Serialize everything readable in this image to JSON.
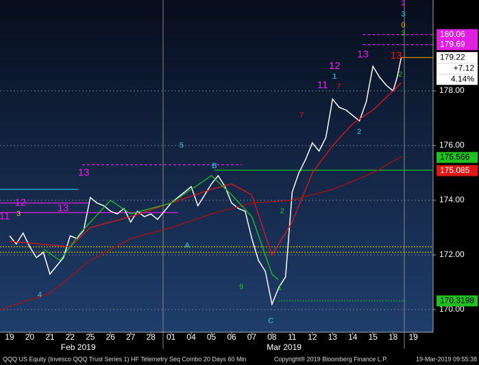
{
  "chart_data": {
    "type": "line",
    "title": "QQQ US Equity (Invesco QQQ Trust Series 1) HF Telemetry Seq Combo 20 Days 60 Min",
    "copyright": "Copyright® 2019 Bloomberg Finance L.P.",
    "timestamp": "19-Mar-2019 09:55:38",
    "xlim": [
      -0.475,
      20.98
    ],
    "ylim": [
      169.175,
      181.325
    ],
    "xticks": [
      {
        "value": 0,
        "label": "19"
      },
      {
        "value": 1,
        "label": "20"
      },
      {
        "value": 2,
        "label": "21"
      },
      {
        "value": 3,
        "label": "22"
      },
      {
        "value": 4,
        "label": "25"
      },
      {
        "value": 5,
        "label": "26"
      },
      {
        "value": 6,
        "label": "27"
      },
      {
        "value": 7,
        "label": "28"
      },
      {
        "value": 8,
        "label": "01"
      },
      {
        "value": 9,
        "label": "04"
      },
      {
        "value": 10,
        "label": "05"
      },
      {
        "value": 11,
        "label": "06"
      },
      {
        "value": 12,
        "label": "07"
      },
      {
        "value": 13,
        "label": "08"
      },
      {
        "value": 14,
        "label": "11"
      },
      {
        "value": 15,
        "label": "12"
      },
      {
        "value": 16,
        "label": "13"
      },
      {
        "value": 17,
        "label": "14"
      },
      {
        "value": 18,
        "label": "15"
      },
      {
        "value": 19,
        "label": "18"
      },
      {
        "value": 20,
        "label": "19"
      }
    ],
    "month_labels": [
      {
        "value": 3.4,
        "label": "Feb 2019"
      },
      {
        "value": 13.6,
        "label": "Mar 2019"
      }
    ],
    "yticks": [
      {
        "value": 170,
        "label": "170.00"
      },
      {
        "value": 172,
        "label": "172.00"
      },
      {
        "value": 174,
        "label": "174.00"
      },
      {
        "value": 176,
        "label": "176.00"
      },
      {
        "value": 178,
        "label": "178.00"
      }
    ],
    "grid": true,
    "series": [
      {
        "color": "#ffffff",
        "x": [
          0,
          0.33,
          0.67,
          1,
          1.33,
          1.67,
          2,
          2.33,
          2.67,
          3,
          3.33,
          3.67,
          4,
          4.33,
          4.67,
          5,
          5.33,
          5.67,
          6,
          6.33,
          6.67,
          7,
          7.33,
          7.67,
          8,
          8.33,
          8.67,
          9,
          9.33,
          9.67,
          10,
          10.33,
          10.67,
          11,
          11.33,
          11.67,
          12,
          12.33,
          12.67,
          13,
          13.33,
          13.67,
          14,
          14.33,
          14.67,
          15,
          15.33,
          15.67,
          16,
          16.33,
          16.67,
          17,
          17.33,
          17.67,
          18,
          18.33,
          18.67,
          19,
          19.2,
          19.4
        ],
        "values": [
          172.7,
          172.4,
          172.8,
          172.3,
          171.9,
          172.1,
          171.3,
          171.6,
          171.9,
          172.7,
          172.6,
          172.9,
          174.1,
          173.9,
          173.8,
          173.6,
          173.5,
          173.7,
          173.2,
          173.6,
          173.4,
          173.5,
          173.3,
          173.6,
          173.9,
          174.1,
          174.3,
          174.5,
          173.8,
          174.2,
          174.6,
          174.9,
          174.5,
          173.9,
          173.7,
          173.6,
          172.6,
          171.8,
          171.4,
          170.2,
          170.8,
          171.2,
          174.3,
          175.0,
          175.5,
          176.1,
          175.8,
          176.3,
          177.7,
          177.4,
          177.3,
          177.1,
          176.9,
          177.6,
          178.9,
          178.5,
          178.2,
          178.0,
          178.5,
          179.22
        ]
      },
      {
        "color": "#e01818",
        "x": [
          0,
          3,
          4,
          6,
          8,
          10,
          11,
          12,
          13,
          14,
          15,
          16,
          17,
          18,
          19,
          19.4
        ],
        "values": [
          172.5,
          172.3,
          173.0,
          173.4,
          173.9,
          174.4,
          174.6,
          174.2,
          172.0,
          173.2,
          175.0,
          176.0,
          176.8,
          177.3,
          178.0,
          178.3
        ]
      },
      {
        "color": "#b01010",
        "x": [
          -0.475,
          2,
          4,
          6,
          8,
          10,
          12,
          14,
          16,
          18,
          19.4
        ],
        "values": [
          170.0,
          170.6,
          171.8,
          172.6,
          173.0,
          173.5,
          173.9,
          174.0,
          174.4,
          175.0,
          175.6
        ]
      },
      {
        "color": "#20c020",
        "x": [
          1.7,
          2.5,
          3.5,
          5,
          6,
          8,
          10,
          11,
          12,
          13,
          13.3
        ],
        "values": [
          172.2,
          171.8,
          172.8,
          174.0,
          173.5,
          173.9,
          174.9,
          174.2,
          173.4,
          171.3,
          171.1
        ]
      }
    ],
    "levels": [
      {
        "value": 172.3,
        "x_from": -0.475,
        "x_to": 20.98,
        "color": "#d4c000",
        "style": "dotted"
      },
      {
        "value": 172.1,
        "x_from": -0.475,
        "x_to": 20.98,
        "color": "#d4c000",
        "style": "dotted"
      },
      {
        "value": 175.3,
        "x_from": 3.6,
        "x_to": 11.5,
        "color": "#e020e0",
        "style": "dashed"
      },
      {
        "value": 175.1,
        "x_from": 10.15,
        "x_to": 20.98,
        "color": "#20c020",
        "style": "solid"
      },
      {
        "value": 174.4,
        "x_from": -0.475,
        "x_to": 3.4,
        "color": "#30c0e0",
        "style": "solid"
      },
      {
        "value": 173.9,
        "x_from": -0.475,
        "x_to": 3.9,
        "color": "#e020e0",
        "style": "solid"
      },
      {
        "value": 173.55,
        "x_from": -0.475,
        "x_to": 8.35,
        "color": "#e020e0",
        "style": "solid"
      },
      {
        "value": 170.3198,
        "x_from": 13.3,
        "x_to": 19.6,
        "color": "#20c020",
        "style": "dotted"
      },
      {
        "value": 180.06,
        "x_from": 17.5,
        "x_to": 20.98,
        "color": "#e020e0",
        "style": "dashed"
      },
      {
        "value": 179.69,
        "x_from": 17.5,
        "x_to": 20.98,
        "color": "#e020e0",
        "style": "dashed"
      },
      {
        "value": 179.22,
        "x_from": 19.4,
        "x_to": 20.98,
        "color": "#e0a000",
        "style": "solid"
      }
    ],
    "price_labels": [
      {
        "value": 180.06,
        "label": "180.06",
        "color": "#e020e0",
        "text_color": "#ffffff"
      },
      {
        "value": 179.69,
        "label": "179.69",
        "color": "#e020e0",
        "text_color": "#ffffff"
      },
      {
        "value": 179.22,
        "label": "179.22",
        "color": "#ffffff",
        "text_color": "#000000"
      },
      {
        "value": 175.566,
        "label": "175.566",
        "color": "#20c020",
        "text_color": "#000000"
      },
      {
        "value": 175.085,
        "label": "175.085",
        "color": "#e01818",
        "text_color": "#ffffff"
      },
      {
        "value": 170.3198,
        "label": "170.3198",
        "color": "#20c020",
        "text_color": "#000000"
      }
    ],
    "change": {
      "value": 7.12,
      "label": "+7.12"
    },
    "change_pct": {
      "value": 4.14,
      "label": "4.14%"
    },
    "annotations": [
      {
        "text": "13",
        "x": 3.67,
        "y": 175.0,
        "color": "#e020e0"
      },
      {
        "text": "13",
        "x": 2.65,
        "y": 173.7,
        "color": "#e020e0"
      },
      {
        "text": "13",
        "x": 17.5,
        "y": 179.33,
        "color": "#e020e0"
      },
      {
        "text": "13",
        "x": 19.15,
        "y": 179.28,
        "color": "#e01818"
      },
      {
        "text": "12",
        "x": 0.54,
        "y": 173.9,
        "color": "#e020e0"
      },
      {
        "text": "12",
        "x": 16.1,
        "y": 178.9,
        "color": "#e020e0"
      },
      {
        "text": "11",
        "x": -0.25,
        "y": 173.4,
        "color": "#e020e0"
      },
      {
        "text": "11",
        "x": 15.5,
        "y": 178.2,
        "color": "#e020e0"
      },
      {
        "text": "5",
        "x": 8.52,
        "y": 176.0,
        "color": "#30d0e0"
      },
      {
        "text": "B",
        "x": 10.15,
        "y": 175.25,
        "color": "#30d0e0"
      },
      {
        "text": "A",
        "x": 8.8,
        "y": 172.33,
        "color": "#30d0e0"
      },
      {
        "text": "C",
        "x": 12.94,
        "y": 169.58,
        "color": "#30d0e0"
      },
      {
        "text": "4",
        "x": 1.49,
        "y": 170.53,
        "color": "#30d0e0"
      },
      {
        "text": "2",
        "x": 17.32,
        "y": 176.5,
        "color": "#30d0e0"
      },
      {
        "text": "1",
        "x": 16.1,
        "y": 178.52,
        "color": "#30d0e0"
      },
      {
        "text": "7",
        "x": 14.47,
        "y": 177.1,
        "color": "#e01818"
      },
      {
        "text": "7",
        "x": 16.3,
        "y": 178.15,
        "color": "#e01818"
      },
      {
        "text": "3",
        "x": 0.45,
        "y": 173.5,
        "color": "#e0c040"
      },
      {
        "text": "9",
        "x": 11.48,
        "y": 170.82,
        "color": "#20c020"
      },
      {
        "text": "1",
        "x": 13.38,
        "y": 170.8,
        "color": "#20c020"
      },
      {
        "text": "2",
        "x": 13.5,
        "y": 173.6,
        "color": "#20c020"
      },
      {
        "text": "2",
        "x": 19.35,
        "y": 178.6,
        "color": "#20c020"
      },
      {
        "text": "3",
        "x": 19.5,
        "y": 180.1,
        "color": "#20c020"
      },
      {
        "text": "2",
        "x": 19.5,
        "y": 181.2,
        "color": "#e020e0"
      },
      {
        "text": "3",
        "x": 19.5,
        "y": 180.8,
        "color": "#30d0e0"
      },
      {
        "text": "0",
        "x": 19.5,
        "y": 180.4,
        "color": "#e0c040"
      }
    ]
  }
}
